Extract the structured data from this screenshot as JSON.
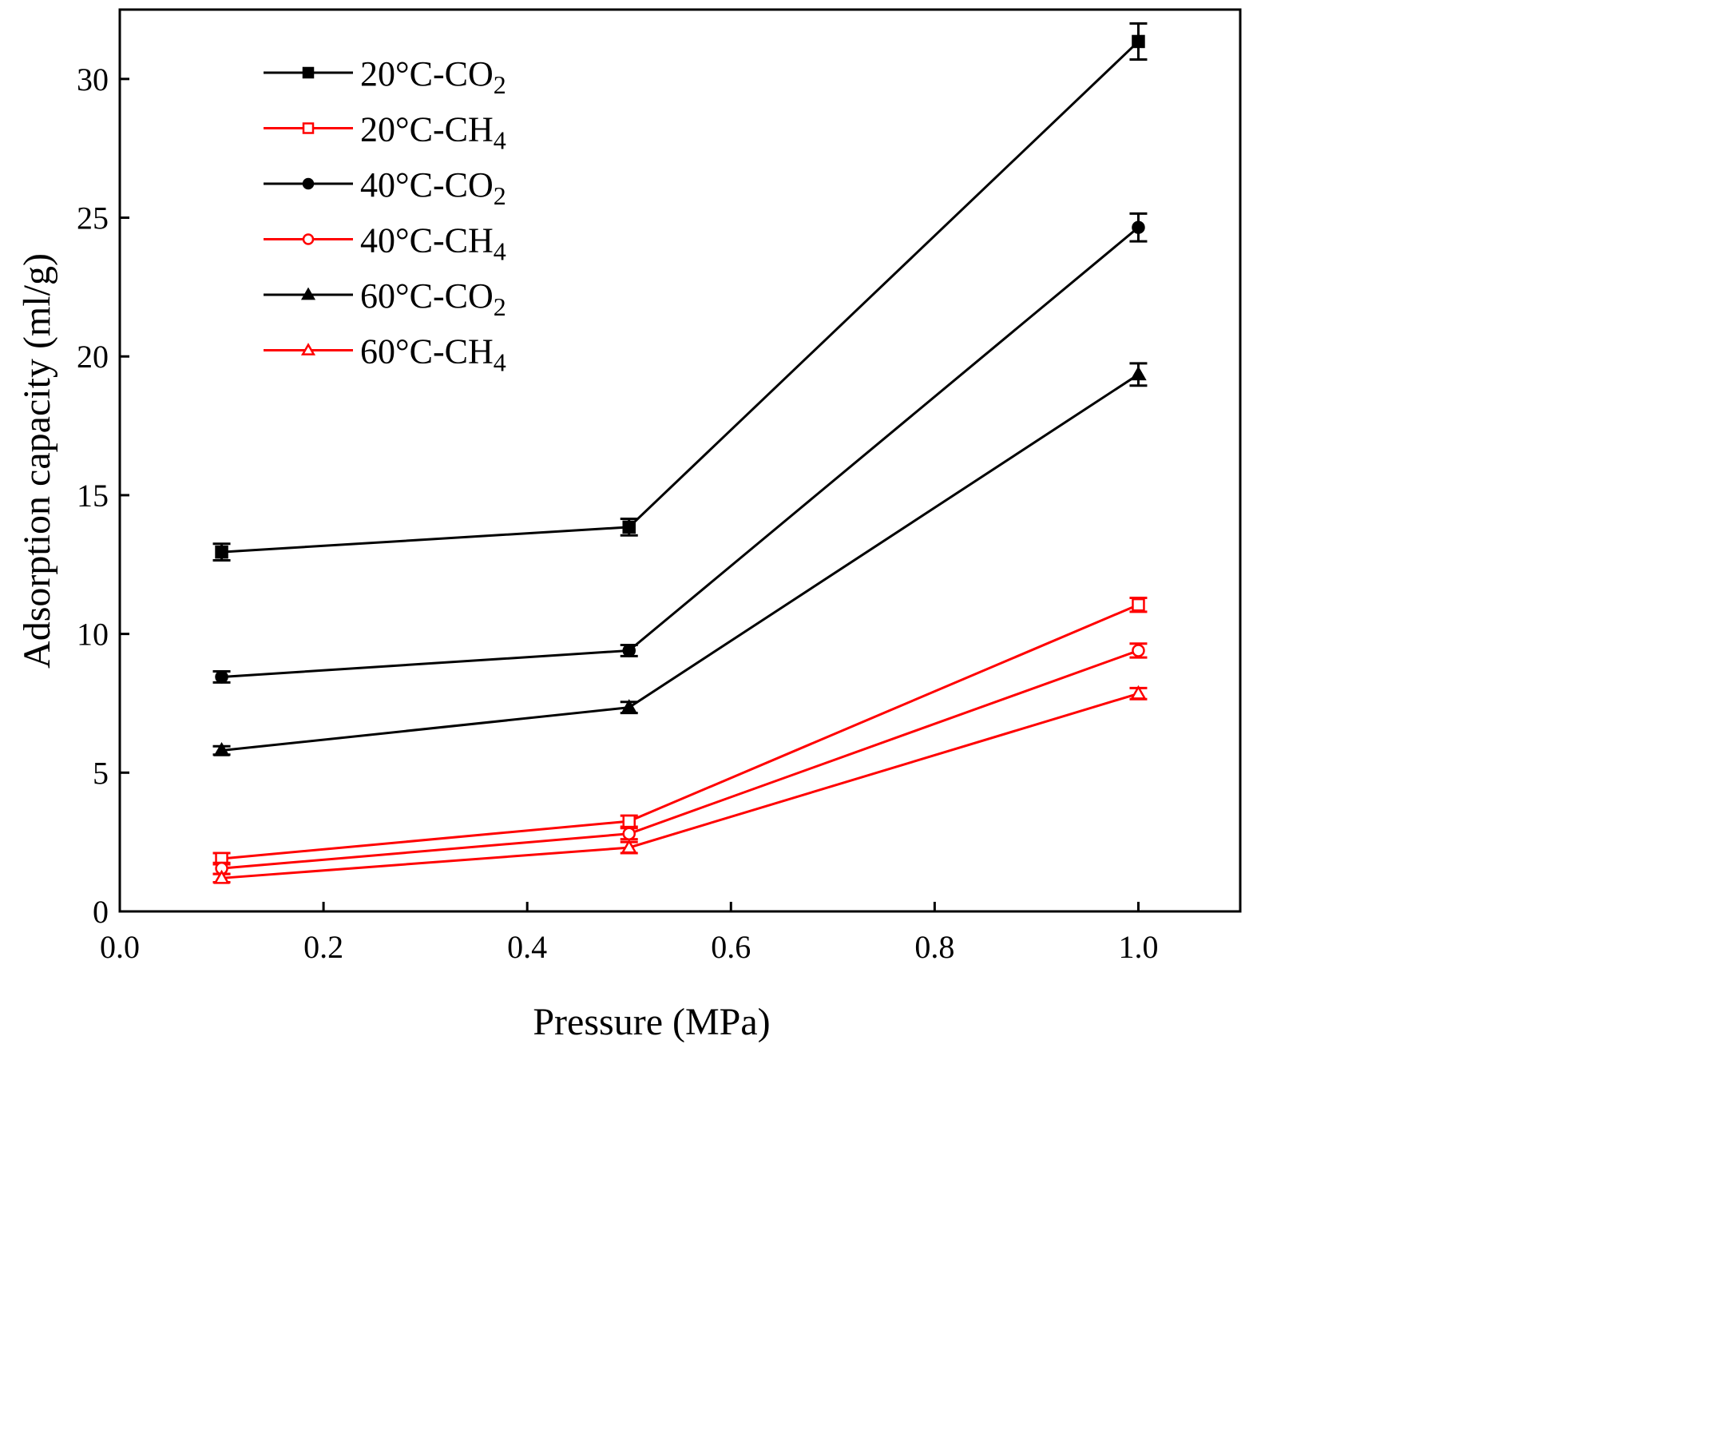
{
  "chart_data": {
    "type": "line",
    "title": "",
    "xlabel": "Pressure (MPa)",
    "ylabel": "Adsorption capacity (ml/g)",
    "xlim": [
      0.0,
      1.1
    ],
    "ylim": [
      0,
      32.5
    ],
    "xticks": [
      0.0,
      0.2,
      0.4,
      0.6,
      0.8,
      1.0
    ],
    "xtick_labels": [
      "0.0",
      "0.2",
      "0.4",
      "0.6",
      "0.8",
      "1.0"
    ],
    "yticks": [
      0,
      5,
      10,
      15,
      20,
      25,
      30
    ],
    "ytick_labels": [
      "0",
      "5",
      "10",
      "15",
      "20",
      "25",
      "30"
    ],
    "grid": false,
    "legend_position": "top-left",
    "x": [
      0.1,
      0.5,
      1.0
    ],
    "series": [
      {
        "name": "20°C-CO₂",
        "base": "20°C-CO",
        "sub": "2",
        "color": "#000000",
        "marker": "square",
        "filled": true,
        "values": [
          12.95,
          13.85,
          31.35
        ],
        "errors": [
          0.3,
          0.3,
          0.65
        ]
      },
      {
        "name": "20°C-CH₄",
        "base": "20°C-CH",
        "sub": "4",
        "color": "#ff0000",
        "marker": "square",
        "filled": false,
        "values": [
          1.9,
          3.25,
          11.05
        ],
        "errors": [
          0.2,
          0.2,
          0.25
        ]
      },
      {
        "name": "40°C-CO₂",
        "base": "40°C-CO",
        "sub": "2",
        "color": "#000000",
        "marker": "circle",
        "filled": true,
        "values": [
          8.45,
          9.4,
          24.65
        ],
        "errors": [
          0.2,
          0.2,
          0.5
        ]
      },
      {
        "name": "40°C-CH₄",
        "base": "40°C-CH",
        "sub": "4",
        "color": "#ff0000",
        "marker": "circle",
        "filled": false,
        "values": [
          1.55,
          2.8,
          9.4
        ],
        "errors": [
          0.2,
          0.2,
          0.25
        ]
      },
      {
        "name": "60°C-CO₂",
        "base": "60°C-CO",
        "sub": "2",
        "color": "#000000",
        "marker": "triangle",
        "filled": true,
        "values": [
          5.8,
          7.35,
          19.35
        ],
        "errors": [
          0.15,
          0.2,
          0.4
        ]
      },
      {
        "name": "60°C-CH₄",
        "base": "60°C-CH",
        "sub": "4",
        "color": "#ff0000",
        "marker": "triangle",
        "filled": false,
        "values": [
          1.2,
          2.3,
          7.85
        ],
        "errors": [
          0.15,
          0.2,
          0.2
        ]
      }
    ]
  }
}
